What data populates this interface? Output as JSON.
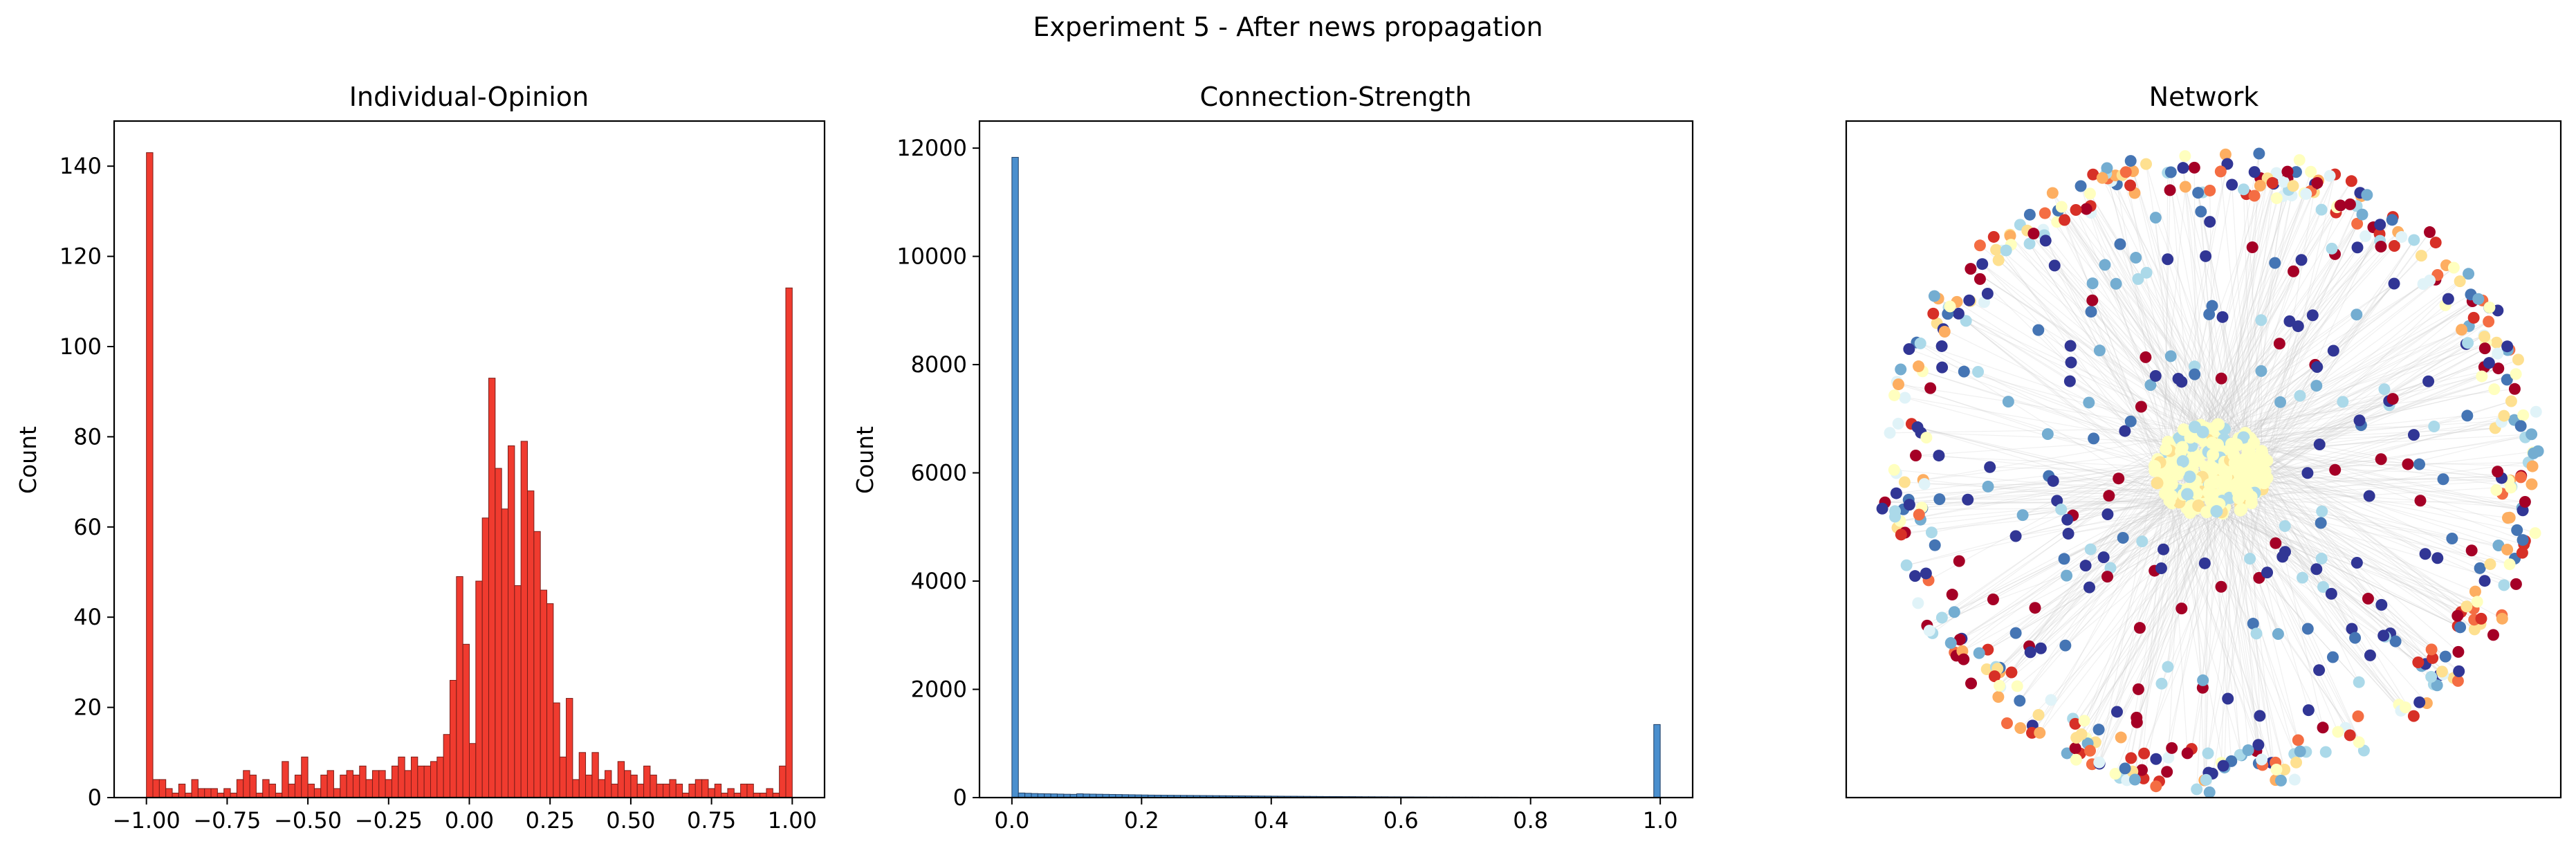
{
  "figure": {
    "suptitle": "Experiment 5 - After news propagation"
  },
  "chart_data": [
    {
      "type": "bar",
      "title": "Individual-Opinion",
      "xlabel": "",
      "ylabel": "Count",
      "color": "#f03b2f",
      "edge_color": "#7a1d18",
      "bin_range": [
        -1.0,
        1.0
      ],
      "bins": 100,
      "xlim": [
        -1.1,
        1.1
      ],
      "ylim": [
        0,
        150
      ],
      "xticks": [
        -1.0,
        -0.75,
        -0.5,
        -0.25,
        0.0,
        0.25,
        0.5,
        0.75,
        1.0
      ],
      "xtick_labels": [
        "−1.00",
        "−0.75",
        "−0.50",
        "−0.25",
        "0.00",
        "0.25",
        "0.50",
        "0.75",
        "1.00"
      ],
      "yticks": [
        0,
        20,
        40,
        60,
        80,
        100,
        120,
        140
      ],
      "values": [
        143,
        4,
        4,
        2,
        1,
        3,
        1,
        4,
        2,
        2,
        2,
        1,
        2,
        1,
        4,
        6,
        5,
        1,
        4,
        3,
        1,
        8,
        3,
        5,
        9,
        3,
        2,
        5,
        6,
        2,
        5,
        6,
        5,
        7,
        4,
        6,
        6,
        4,
        7,
        9,
        6,
        9,
        7,
        7,
        8,
        9,
        14,
        26,
        49,
        34,
        12,
        48,
        62,
        93,
        73,
        64,
        78,
        47,
        79,
        68,
        59,
        46,
        43,
        21,
        9,
        22,
        4,
        10,
        5,
        10,
        4,
        6,
        3,
        8,
        6,
        5,
        3,
        7,
        5,
        3,
        3,
        4,
        3,
        1,
        3,
        4,
        4,
        2,
        3,
        1,
        2,
        1,
        3,
        3,
        1,
        1,
        2,
        1,
        7,
        113
      ]
    },
    {
      "type": "bar",
      "title": "Connection-Strength",
      "xlabel": "",
      "ylabel": "Count",
      "color": "#4a8fce",
      "edge_color": "#1f3f66",
      "bin_range": [
        0.0,
        1.0
      ],
      "bins": 100,
      "xlim": [
        -0.05,
        1.05
      ],
      "ylim": [
        0,
        12500
      ],
      "xticks": [
        0.0,
        0.2,
        0.4,
        0.6,
        0.8,
        1.0
      ],
      "xtick_labels": [
        "0.0",
        "0.2",
        "0.4",
        "0.6",
        "0.8",
        "1.0"
      ],
      "yticks": [
        0,
        2000,
        4000,
        6000,
        8000,
        10000,
        12000
      ],
      "values": [
        11830,
        85,
        80,
        75,
        72,
        70,
        68,
        65,
        62,
        60,
        70,
        66,
        64,
        62,
        60,
        58,
        56,
        54,
        52,
        50,
        48,
        46,
        45,
        44,
        43,
        42,
        41,
        40,
        39,
        38,
        37,
        36,
        35,
        34,
        33,
        32,
        31,
        30,
        29,
        28,
        27,
        26,
        25,
        25,
        24,
        23,
        22,
        21,
        20,
        20,
        19,
        18,
        18,
        17,
        16,
        16,
        15,
        15,
        14,
        14,
        13,
        13,
        12,
        12,
        11,
        11,
        10,
        10,
        10,
        9,
        9,
        9,
        8,
        8,
        8,
        7,
        7,
        7,
        6,
        6,
        6,
        5,
        5,
        5,
        5,
        4,
        4,
        4,
        4,
        3,
        3,
        3,
        3,
        3,
        2,
        2,
        2,
        2,
        2,
        1350
      ]
    },
    {
      "type": "scatter",
      "subtype": "network-graph",
      "title": "Network",
      "xlabel": "",
      "ylabel": "",
      "axes_ticks": false,
      "node_colors": [
        "#a50026",
        "#d73027",
        "#f46d43",
        "#fdae61",
        "#fee090",
        "#ffffbf",
        "#e0f3f8",
        "#abd9e9",
        "#74add1",
        "#4575b4",
        "#313695"
      ],
      "edge_color": "#c8c8c8"
    }
  ]
}
